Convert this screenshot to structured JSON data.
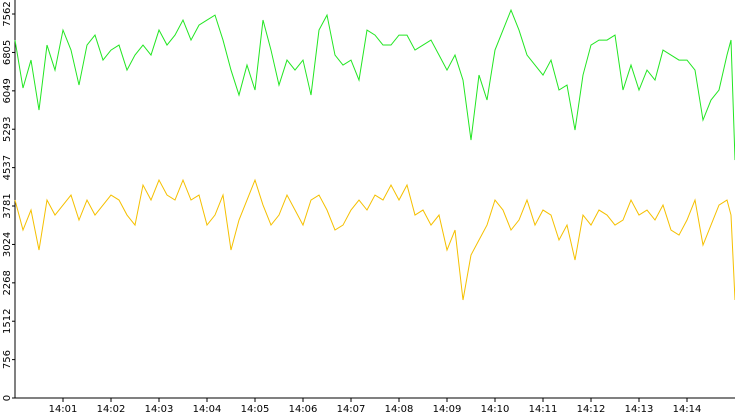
{
  "chart_data": {
    "type": "line",
    "x": [
      0,
      10,
      20,
      30,
      40,
      50,
      60,
      70,
      80,
      90,
      100,
      110,
      120,
      130,
      140,
      150,
      160,
      170,
      180,
      190,
      200,
      210,
      220,
      230,
      240,
      250,
      260,
      270,
      280,
      290,
      300,
      310,
      320,
      330,
      340,
      350,
      360,
      370,
      380,
      390,
      400,
      410,
      420,
      430,
      440,
      450,
      460,
      470,
      480,
      490,
      500,
      510,
      520,
      530,
      540,
      550,
      560,
      570,
      580,
      590,
      600,
      610,
      620,
      630,
      640,
      650,
      660,
      670,
      680,
      690,
      700,
      710,
      720,
      730,
      740,
      750,
      760,
      770,
      780,
      790,
      800,
      810,
      820,
      830,
      840,
      850,
      860,
      870,
      880,
      890,
      895,
      900
    ],
    "series": [
      {
        "color": "#22e622",
        "values": [
          7049,
          6104,
          6655,
          5671,
          6951,
          6458,
          7246,
          6852,
          6163,
          6951,
          7147,
          6655,
          6852,
          6951,
          6458,
          6754,
          6951,
          6754,
          7246,
          6951,
          7147,
          7443,
          7049,
          7344,
          7443,
          7541,
          7049,
          6458,
          5966,
          6557,
          6065,
          7443,
          6852,
          6163,
          6655,
          6458,
          6655,
          5966,
          7246,
          7541,
          6754,
          6557,
          6655,
          6261,
          7246,
          7147,
          6951,
          6951,
          7147,
          7147,
          6852,
          6951,
          7049,
          6754,
          6458,
          6754,
          6261,
          5080,
          6360,
          5868,
          6852,
          7246,
          7640,
          7246,
          6754,
          6557,
          6360,
          6655,
          6065,
          6163,
          5277,
          6360,
          6951,
          7049,
          7049,
          7147,
          6065,
          6557,
          6065,
          6458,
          6261,
          6852,
          6754,
          6655,
          6655,
          6458,
          5474,
          5868,
          6065,
          6754,
          7049,
          4686
        ]
      },
      {
        "color": "#f5c000",
        "values": [
          3899,
          3308,
          3702,
          2914,
          3899,
          3603,
          3800,
          3997,
          3505,
          3899,
          3603,
          3800,
          3997,
          3899,
          3603,
          3406,
          4194,
          3899,
          4292,
          3997,
          3899,
          4292,
          3899,
          3997,
          3406,
          3603,
          3997,
          2914,
          3505,
          3899,
          4292,
          3800,
          3406,
          3603,
          3997,
          3702,
          3406,
          3899,
          3997,
          3702,
          3308,
          3406,
          3702,
          3899,
          3702,
          3997,
          3899,
          4194,
          3899,
          4194,
          3603,
          3702,
          3406,
          3603,
          2914,
          3308,
          1930,
          2816,
          3111,
          3406,
          3899,
          3702,
          3308,
          3505,
          3899,
          3406,
          3702,
          3603,
          3111,
          3406,
          2717,
          3603,
          3406,
          3702,
          3603,
          3406,
          3505,
          3899,
          3603,
          3702,
          3505,
          3800,
          3308,
          3209,
          3505,
          3899,
          3013,
          3406,
          3800,
          3899,
          3603,
          1930
        ]
      }
    ],
    "xlim": [
      0,
      900
    ],
    "xticks": [
      {
        "value": 60,
        "label": "14:01"
      },
      {
        "value": 120,
        "label": "14:02"
      },
      {
        "value": 180,
        "label": "14:03"
      },
      {
        "value": 240,
        "label": "14:04"
      },
      {
        "value": 300,
        "label": "14:05"
      },
      {
        "value": 360,
        "label": "14:06"
      },
      {
        "value": 420,
        "label": "14:07"
      },
      {
        "value": 480,
        "label": "14:08"
      },
      {
        "value": 540,
        "label": "14:09"
      },
      {
        "value": 600,
        "label": "14:10"
      },
      {
        "value": 660,
        "label": "14:11"
      },
      {
        "value": 720,
        "label": "14:12"
      },
      {
        "value": 780,
        "label": "14:13"
      },
      {
        "value": 840,
        "label": "14:14"
      }
    ],
    "ylim": [
      0,
      7838
    ],
    "yticks": [
      0,
      756,
      1512,
      2268,
      3024,
      3781,
      4537,
      5293,
      6049,
      6805,
      7562
    ]
  }
}
